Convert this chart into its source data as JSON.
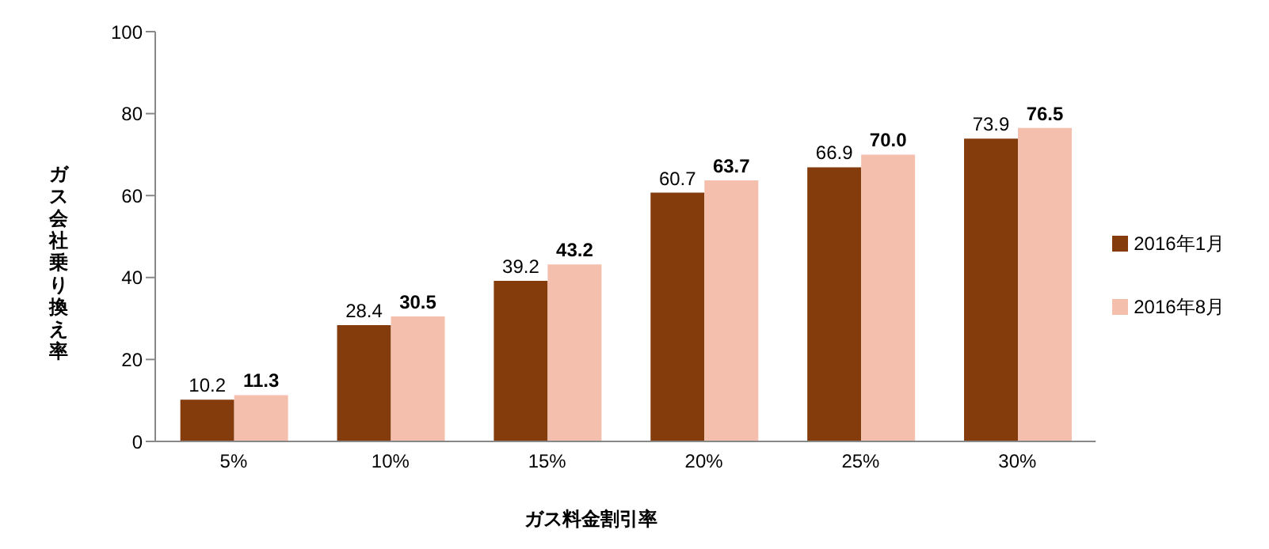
{
  "chart_data": {
    "type": "bar",
    "xlabel": "ガス料金割引率",
    "ylabel": "ガス会社乗り換え率",
    "categories": [
      "5%",
      "10%",
      "15%",
      "20%",
      "25%",
      "30%"
    ],
    "series": [
      {
        "name": "2016年1月",
        "color": "#843c0c",
        "values": [
          10.2,
          28.4,
          39.2,
          60.7,
          66.9,
          73.9
        ],
        "value_labels": [
          "10.2",
          "28.4",
          "39.2",
          "60.7",
          "66.9",
          "73.9"
        ]
      },
      {
        "name": "2016年8月",
        "color": "#f4bfad",
        "values": [
          11.3,
          30.5,
          43.2,
          63.7,
          70.0,
          76.5
        ],
        "value_labels": [
          "11.3",
          "30.5",
          "43.2",
          "63.7",
          "70.0",
          "76.5"
        ]
      }
    ],
    "ylim": [
      0,
      100
    ],
    "yticks": [
      0,
      20,
      40,
      60,
      80,
      100
    ],
    "grid": false,
    "legend": "right"
  }
}
